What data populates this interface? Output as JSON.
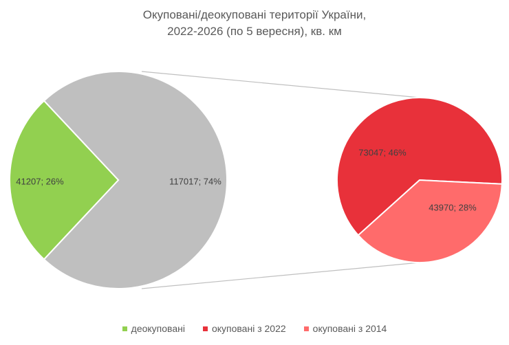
{
  "chart_data": {
    "type": "pie",
    "subtype": "pie-of-pie",
    "title": [
      "Окуповані/деокуповані території України,",
      "2022-2026 (по 5 вересня), кв. км"
    ],
    "main_pie": {
      "slices": [
        {
          "label": "41207; 26%",
          "value": 41207,
          "percent": 26,
          "color": "#92d050"
        },
        {
          "label": "117017; 74%",
          "value": 117017,
          "percent": 74,
          "color": "#bfbfbf"
        }
      ]
    },
    "secondary_pie": {
      "slices": [
        {
          "label": "73047; 46%",
          "value": 73047,
          "percent": 46,
          "color": "#e8313a"
        },
        {
          "label": "43970; 28%",
          "value": 43970,
          "percent": 28,
          "color": "#ff6b6b"
        }
      ]
    },
    "legend": [
      {
        "name": "деокуповані",
        "color": "#92d050"
      },
      {
        "name": "окуповані з 2022",
        "color": "#e8313a"
      },
      {
        "name": "окуповані з 2014",
        "color": "#ff6b6b"
      }
    ],
    "legend_position": "bottom",
    "connector_color": "#bfbfbf"
  }
}
